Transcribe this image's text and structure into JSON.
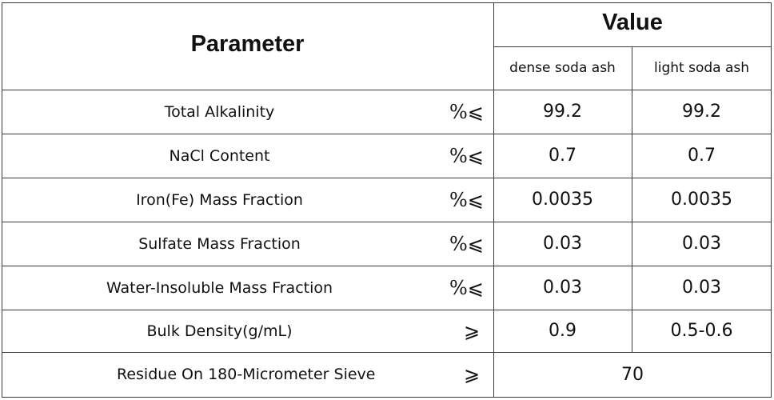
{
  "header": {
    "parameter": "Parameter",
    "value": "Value",
    "dense": "dense soda ash",
    "light": "light soda ash"
  },
  "rows": [
    {
      "name": "Total Alkalinity",
      "unit": "%⩽",
      "dense": "99.2",
      "light": "99.2"
    },
    {
      "name": "NaCl Content",
      "unit": "%⩽",
      "dense": "0.7",
      "light": "0.7"
    },
    {
      "name": "Iron(Fe) Mass Fraction",
      "unit": "%⩽",
      "dense": "0.0035",
      "light": "0.0035"
    },
    {
      "name": "Sulfate Mass Fraction",
      "unit": "%⩽",
      "dense": "0.03",
      "light": "0.03"
    },
    {
      "name": "Water-Insoluble Mass Fraction",
      "unit": "%⩽",
      "dense": "0.03",
      "light": "0.03"
    },
    {
      "name": "Bulk Density(g/mL)",
      "unit": "⩾",
      "dense": "0.9",
      "light": "0.5-0.6"
    }
  ],
  "last_row": {
    "name": "Residue On 180-Micrometer Sieve",
    "unit": "⩾",
    "value": "70"
  }
}
